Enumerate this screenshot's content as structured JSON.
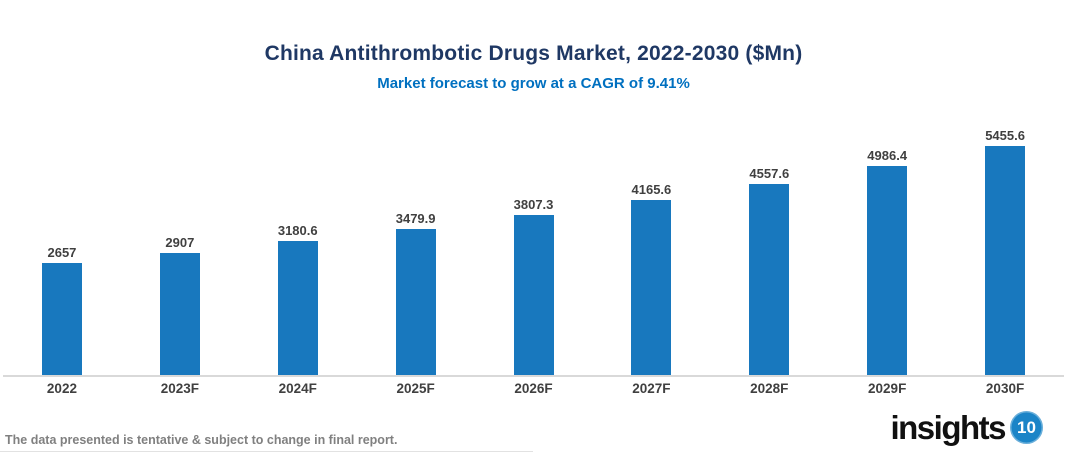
{
  "header": {
    "title": "China Antithrombotic Drugs Market, 2022-2030 ($Mn)",
    "subtitle": "Market forecast to grow at a CAGR of 9.41%"
  },
  "chart_data": {
    "type": "bar",
    "title": "China Antithrombotic Drugs Market, 2022-2030 ($Mn)",
    "subtitle": "Market forecast to grow at a CAGR of 9.41%",
    "categories": [
      "2022",
      "2023F",
      "2024F",
      "2025F",
      "2026F",
      "2027F",
      "2028F",
      "2029F",
      "2030F"
    ],
    "values": [
      2657,
      2907,
      3180.6,
      3479.9,
      3807.3,
      4165.6,
      4557.6,
      4986.4,
      5455.6
    ],
    "xlabel": "",
    "ylabel": "",
    "ylim": [
      0,
      5600
    ],
    "grid": false,
    "legend": false,
    "data_labels": true,
    "bar_color": "#1878be"
  },
  "footer": {
    "disclaimer": "The data presented is tentative & subject to change in final report.",
    "logo_text": "insights",
    "logo_badge": "10"
  },
  "colors": {
    "title": "#1f3864",
    "subtitle": "#0070c0",
    "bar": "#1878be",
    "label": "#404040",
    "axis_line": "#d9d9d9",
    "disclaimer": "#808080",
    "logo_badge_bg": "#1b84c7"
  }
}
